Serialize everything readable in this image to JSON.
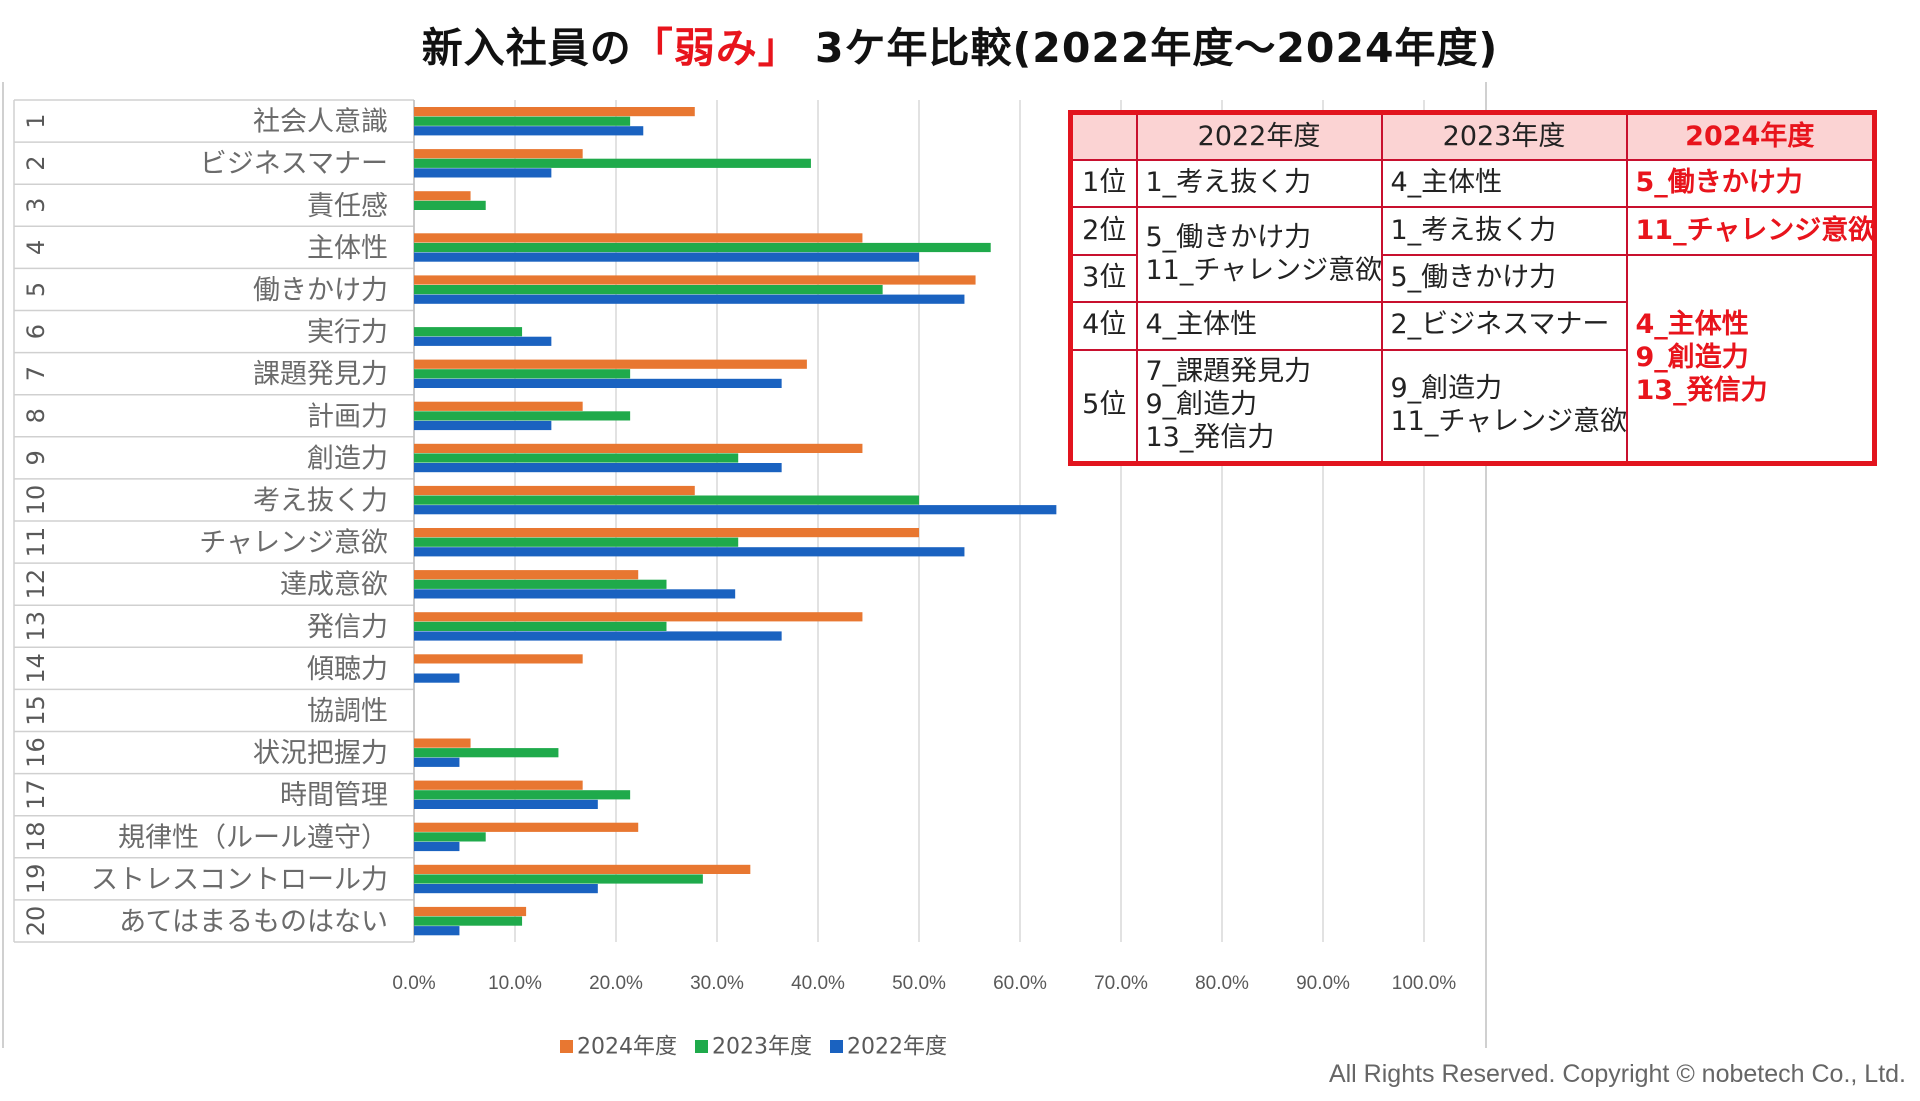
{
  "title": {
    "prefix": "新入社員の",
    "accent": "「弱み」",
    "suffix": " 3ケ年比較(2022年度～2024年度)"
  },
  "copyright": "All Rights Reserved. Copyright © nobetech Co., Ltd.",
  "colors": {
    "s2024": "#e87731",
    "s2023": "#1faa4b",
    "s2022": "#1a62c0",
    "accent": "#e8141c",
    "table_header_bg": "#fbd3d3",
    "table_border": "#e2141e"
  },
  "chart_data": {
    "type": "bar",
    "orientation": "horizontal",
    "categories": [
      {
        "num": "1",
        "label": "社会人意識"
      },
      {
        "num": "2",
        "label": "ビジネスマナー"
      },
      {
        "num": "3",
        "label": "責任感"
      },
      {
        "num": "4",
        "label": "主体性"
      },
      {
        "num": "5",
        "label": "働きかけ力"
      },
      {
        "num": "6",
        "label": "実行力"
      },
      {
        "num": "7",
        "label": "課題発見力"
      },
      {
        "num": "8",
        "label": "計画力"
      },
      {
        "num": "9",
        "label": "創造力"
      },
      {
        "num": "10",
        "label": "考え抜く力"
      },
      {
        "num": "11",
        "label": "チャレンジ意欲"
      },
      {
        "num": "12",
        "label": "達成意欲"
      },
      {
        "num": "13",
        "label": "発信力"
      },
      {
        "num": "14",
        "label": "傾聴力"
      },
      {
        "num": "15",
        "label": "協調性"
      },
      {
        "num": "16",
        "label": "状況把握力"
      },
      {
        "num": "17",
        "label": "時間管理"
      },
      {
        "num": "18",
        "label": "規律性（ルール遵守）"
      },
      {
        "num": "19",
        "label": "ストレスコントロール力"
      },
      {
        "num": "20",
        "label": "あてはまるものはない"
      }
    ],
    "series": [
      {
        "name": "2024年度",
        "color": "#e87731",
        "values": [
          27.8,
          16.7,
          5.6,
          44.4,
          55.6,
          0,
          38.9,
          16.7,
          44.4,
          27.8,
          50.0,
          22.2,
          44.4,
          16.7,
          0,
          5.6,
          16.7,
          22.2,
          33.3,
          11.1
        ]
      },
      {
        "name": "2023年度",
        "color": "#1faa4b",
        "values": [
          21.4,
          39.3,
          7.1,
          57.1,
          46.4,
          10.7,
          21.4,
          21.4,
          32.1,
          50.0,
          32.1,
          25.0,
          25.0,
          0,
          0,
          14.3,
          21.4,
          7.1,
          28.6,
          10.7
        ]
      },
      {
        "name": "2022年度",
        "color": "#1a62c0",
        "values": [
          22.7,
          13.6,
          0,
          50.0,
          54.5,
          13.6,
          36.4,
          13.6,
          36.4,
          63.6,
          54.5,
          31.8,
          36.4,
          4.5,
          0,
          4.5,
          18.2,
          4.5,
          18.2,
          4.5
        ]
      }
    ],
    "xlim": [
      0,
      100
    ],
    "xticks": [
      "0.0%",
      "10.0%",
      "20.0%",
      "30.0%",
      "40.0%",
      "50.0%",
      "60.0%",
      "70.0%",
      "80.0%",
      "90.0%",
      "100.0%"
    ],
    "legend": [
      "2024年度",
      "2023年度",
      "2022年度"
    ],
    "legend_position": "bottom",
    "grid": true
  },
  "rank_table": {
    "header": [
      "",
      "2022年度",
      "2023年度",
      "2024年度"
    ],
    "ranks": [
      "1位",
      "2位",
      "3位",
      "4位",
      "5位"
    ],
    "c2022": {
      "r1": "1_考え抜く力",
      "r23": [
        "5_働きかけ力",
        "11_チャレンジ意欲"
      ],
      "r4": "4_主体性",
      "r5": [
        "7_課題発見力",
        "9_創造力",
        "13_発信力"
      ]
    },
    "c2023": {
      "r1": "4_主体性",
      "r2": "1_考え抜く力",
      "r3": "5_働きかけ力",
      "r4": "2_ビジネスマナー",
      "r5": [
        "9_創造力",
        "11_チャレンジ意欲"
      ]
    },
    "c2024": {
      "r1": "5_働きかけ力",
      "r2": "11_チャレンジ意欲",
      "r35": [
        "4_主体性",
        "9_創造力",
        "13_発信力"
      ]
    }
  }
}
